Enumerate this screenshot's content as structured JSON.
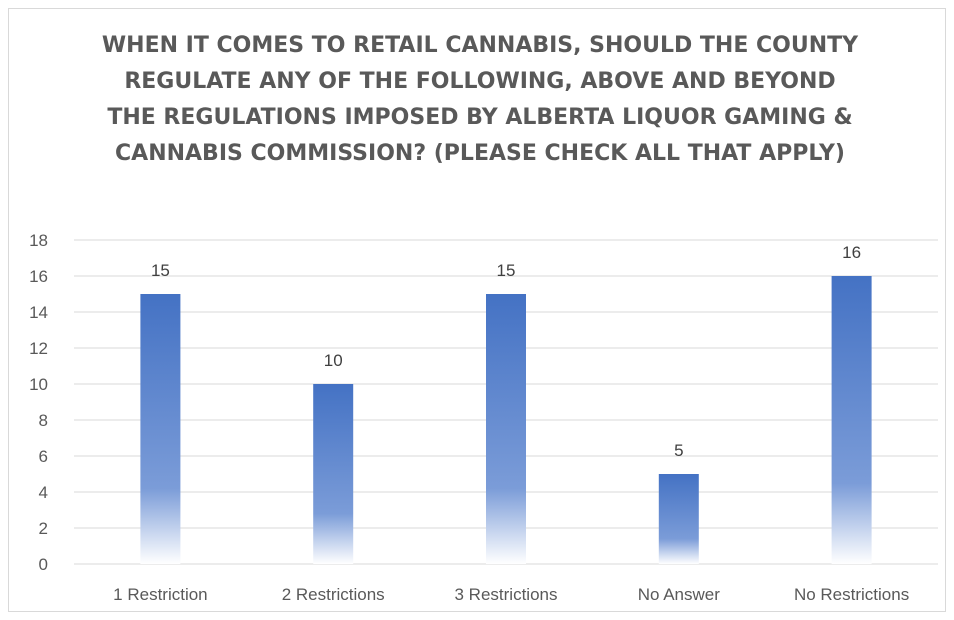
{
  "chart_data": {
    "type": "bar",
    "title": "WHEN IT COMES TO RETAIL CANNABIS, SHOULD THE COUNTY REGULATE ANY OF THE FOLLOWING, ABOVE AND BEYOND THE REGULATIONS IMPOSED BY ALBERTA LIQUOR GAMING & CANNABIS COMMISSION? (PLEASE CHECK ALL THAT APPLY)",
    "categories": [
      "1 Restriction",
      "2 Restrictions",
      "3 Restrictions",
      "No Answer",
      "No Restrictions"
    ],
    "values": [
      15,
      10,
      15,
      5,
      16
    ],
    "ylim": [
      0,
      18
    ],
    "yticks": [
      0,
      2,
      4,
      6,
      8,
      10,
      12,
      14,
      16,
      18
    ],
    "grid": true,
    "legend": "none",
    "bar_color": "#4472c4",
    "bar_fill": "gradient-fade-to-white-at-bottom",
    "gridline_color": "#d9d9d9"
  }
}
